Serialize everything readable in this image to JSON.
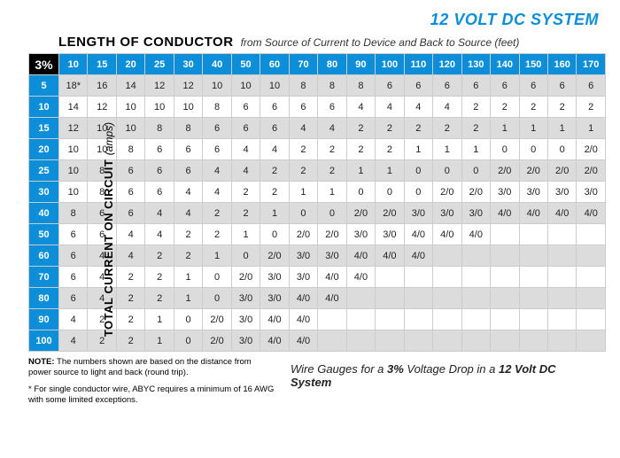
{
  "system_title": {
    "text": "12 VOLT DC SYSTEM",
    "color": "#0d8ed8"
  },
  "header": {
    "title": "LENGTH OF CONDUCTOR",
    "subtitle": "from Source of Current to Device and Back to Source  (feet)"
  },
  "side": {
    "label": "TOTAL CURRENT ON CIRCUIT",
    "unit": "(amps)"
  },
  "table": {
    "corner_label": "3%",
    "col_color": "#0d8ed8",
    "row_color": "#0d8ed8",
    "corner_bg": "#000000",
    "even_row_bg": "#dcdcdc",
    "odd_row_bg": "#ffffff",
    "border_color": "#cccccc",
    "columns": [
      "10",
      "15",
      "20",
      "25",
      "30",
      "40",
      "50",
      "60",
      "70",
      "80",
      "90",
      "100",
      "110",
      "120",
      "130",
      "140",
      "150",
      "160",
      "170"
    ],
    "rows": [
      {
        "amps": "5",
        "cells": [
          "18*",
          "16",
          "14",
          "12",
          "12",
          "10",
          "10",
          "10",
          "8",
          "8",
          "8",
          "6",
          "6",
          "6",
          "6",
          "6",
          "6",
          "6",
          "6"
        ]
      },
      {
        "amps": "10",
        "cells": [
          "14",
          "12",
          "10",
          "10",
          "10",
          "8",
          "6",
          "6",
          "6",
          "6",
          "4",
          "4",
          "4",
          "4",
          "2",
          "2",
          "2",
          "2",
          "2"
        ]
      },
      {
        "amps": "15",
        "cells": [
          "12",
          "10",
          "10",
          "8",
          "8",
          "6",
          "6",
          "6",
          "4",
          "4",
          "2",
          "2",
          "2",
          "2",
          "2",
          "1",
          "1",
          "1",
          "1"
        ]
      },
      {
        "amps": "20",
        "cells": [
          "10",
          "10",
          "8",
          "6",
          "6",
          "6",
          "4",
          "4",
          "2",
          "2",
          "2",
          "2",
          "1",
          "1",
          "1",
          "0",
          "0",
          "0",
          "2/0"
        ]
      },
      {
        "amps": "25",
        "cells": [
          "10",
          "8",
          "6",
          "6",
          "6",
          "4",
          "4",
          "2",
          "2",
          "2",
          "1",
          "1",
          "0",
          "0",
          "0",
          "2/0",
          "2/0",
          "2/0",
          "2/0"
        ]
      },
      {
        "amps": "30",
        "cells": [
          "10",
          "8",
          "6",
          "6",
          "4",
          "4",
          "2",
          "2",
          "1",
          "1",
          "0",
          "0",
          "0",
          "2/0",
          "2/0",
          "3/0",
          "3/0",
          "3/0",
          "3/0"
        ]
      },
      {
        "amps": "40",
        "cells": [
          "8",
          "6",
          "6",
          "4",
          "4",
          "2",
          "2",
          "1",
          "0",
          "0",
          "2/0",
          "2/0",
          "3/0",
          "3/0",
          "3/0",
          "4/0",
          "4/0",
          "4/0",
          "4/0"
        ]
      },
      {
        "amps": "50",
        "cells": [
          "6",
          "6",
          "4",
          "4",
          "2",
          "2",
          "1",
          "0",
          "2/0",
          "2/0",
          "3/0",
          "3/0",
          "4/0",
          "4/0",
          "4/0",
          "",
          "",
          "",
          ""
        ]
      },
      {
        "amps": "60",
        "cells": [
          "6",
          "4",
          "4",
          "2",
          "2",
          "1",
          "0",
          "2/0",
          "3/0",
          "3/0",
          "4/0",
          "4/0",
          "4/0",
          "",
          "",
          "",
          "",
          "",
          ""
        ]
      },
      {
        "amps": "70",
        "cells": [
          "6",
          "4",
          "2",
          "2",
          "1",
          "0",
          "2/0",
          "3/0",
          "3/0",
          "4/0",
          "4/0",
          "",
          "",
          "",
          "",
          "",
          "",
          "",
          ""
        ]
      },
      {
        "amps": "80",
        "cells": [
          "6",
          "4",
          "2",
          "2",
          "1",
          "0",
          "3/0",
          "3/0",
          "4/0",
          "4/0",
          "",
          "",
          "",
          "",
          "",
          "",
          "",
          "",
          ""
        ]
      },
      {
        "amps": "90",
        "cells": [
          "4",
          "2",
          "2",
          "1",
          "0",
          "2/0",
          "3/0",
          "4/0",
          "4/0",
          "",
          "",
          "",
          "",
          "",
          "",
          "",
          "",
          "",
          ""
        ]
      },
      {
        "amps": "100",
        "cells": [
          "4",
          "2",
          "2",
          "1",
          "0",
          "2/0",
          "3/0",
          "4/0",
          "4/0",
          "",
          "",
          "",
          "",
          "",
          "",
          "",
          "",
          "",
          ""
        ]
      }
    ]
  },
  "notes": {
    "note_label": "NOTE:",
    "note_text": " The numbers shown are based on the distance from power source to light and back (round trip).",
    "asterisk": "* For single conductor wire, ABYC requires a minimum of 16 AWG with some limited exceptions."
  },
  "caption": {
    "prefix": "Wire Gauges for a ",
    "pct": "3%",
    "mid": " Voltage Drop in a ",
    "sys": "12 Volt DC System"
  }
}
